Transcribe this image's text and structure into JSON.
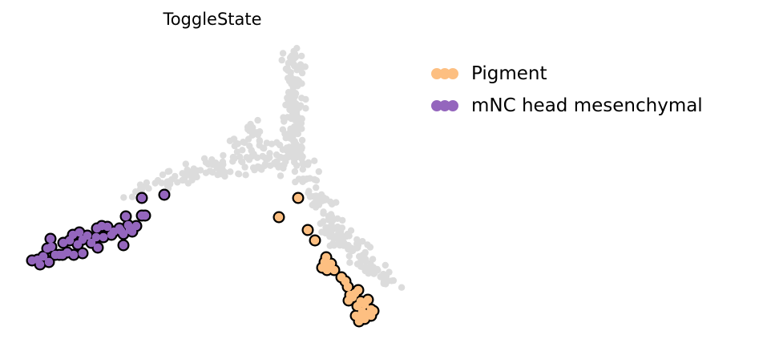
{
  "chart_data": {
    "type": "scatter",
    "title": "ToggleState",
    "xlabel": "",
    "ylabel": "",
    "grid": false,
    "axes_visible": false,
    "legend_position": "top-right outside",
    "background_color": "#dcdcdc",
    "series": [
      {
        "name": "Pigment",
        "color": "#fdbf81",
        "x": [
          372,
          348,
          384,
          393,
          407,
          405,
          411,
          402,
          408,
          413,
          417,
          426,
          431,
          434,
          447,
          437,
          435,
          440,
          443,
          450,
          446,
          455,
          459,
          463,
          452,
          458,
          466,
          463,
          455,
          448,
          452,
          444
        ],
        "y": [
          247,
          271,
          287,
          300,
          321,
          327,
          330,
          334,
          337,
          329,
          337,
          346,
          351,
          358,
          362,
          368,
          375,
          371,
          366,
          376,
          382,
          380,
          374,
          386,
          389,
          392,
          388,
          394,
          398,
          401,
          396,
          394
        ]
      },
      {
        "name": "mNC head mesenchymal",
        "color": "#9466bd",
        "x": [
          205,
          177,
          177,
          157,
          181,
          160,
          149,
          165,
          170,
          162,
          151,
          142,
          154,
          134,
          127,
          121,
          139,
          129,
          120,
          109,
          114,
          103,
          99,
          91,
          103,
          87,
          97,
          79,
          84,
          74,
          64,
          69,
          59,
          63,
          54,
          78,
          47,
          40,
          50,
          92,
          61,
          122,
          154
        ],
        "y": [
          243,
          247,
          269,
          270,
          269,
          281,
          285,
          289,
          282,
          287,
          288,
          289,
          292,
          283,
          282,
          285,
          293,
          296,
          296,
          294,
          303,
          299,
          290,
          293,
          316,
          300,
          305,
          303,
          315,
          318,
          308,
          318,
          310,
          298,
          320,
          318,
          324,
          325,
          330,
          318,
          327,
          309,
          306
        ]
      }
    ]
  }
}
